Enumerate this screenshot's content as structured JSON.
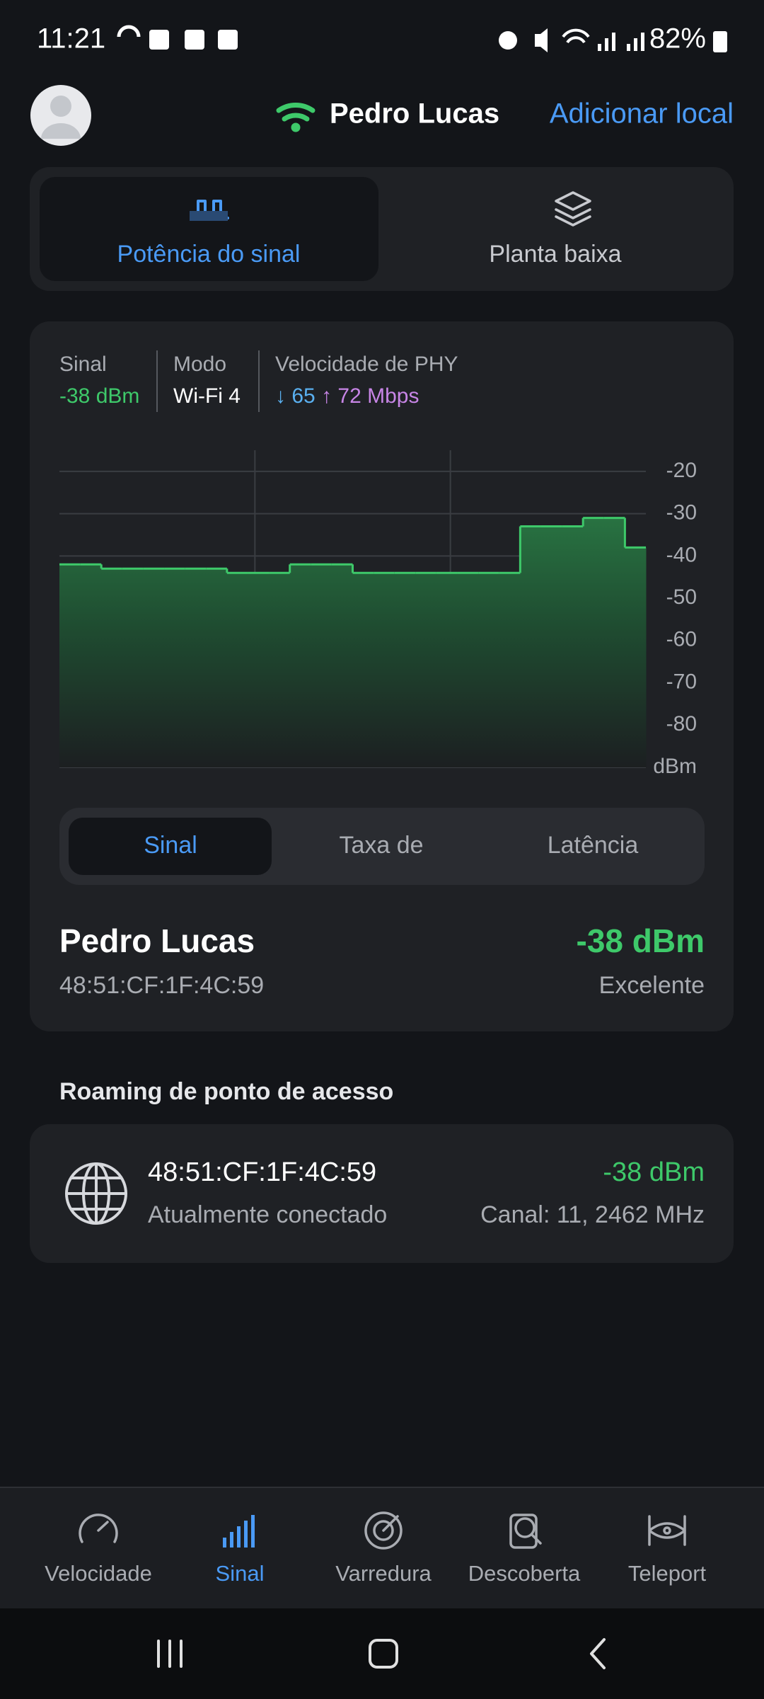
{
  "status_bar": {
    "time": "11:21",
    "battery": "82%"
  },
  "header": {
    "network": "Pedro Lucas",
    "action": "Adicionar local"
  },
  "view_tabs": [
    "Potência do sinal",
    "Planta baixa"
  ],
  "stats": {
    "signal": {
      "label": "Sinal",
      "value": "-38 dBm"
    },
    "mode": {
      "label": "Modo",
      "value": "Wi-Fi 4"
    },
    "phy": {
      "label": "Velocidade de PHY",
      "down": "↓ 65",
      "up": "↑ 72 Mbps"
    }
  },
  "chart": {
    "type": "area",
    "values": [
      -42,
      -42,
      -43,
      -43,
      -43,
      -43,
      -43,
      -43,
      -44,
      -44,
      -44,
      -42,
      -42,
      -42,
      -44,
      -44,
      -44,
      -44,
      -44,
      -44,
      -44,
      -44,
      -33,
      -33,
      -33,
      -31,
      -31,
      -38
    ],
    "ylim": [
      -90,
      -15
    ],
    "yticks": [
      -20,
      -30,
      -40,
      -50,
      -60,
      -70,
      -80,
      {
        "value": -90,
        "label": "dBm"
      }
    ],
    "color": "#3ec96a",
    "grid": true
  },
  "metric_tabs": [
    "Sinal",
    "Taxa de",
    "Latência"
  ],
  "connection": {
    "name": "Pedro Lucas",
    "mac": "48:51:CF:1F:4C:59",
    "signal": "-38 dBm",
    "quality": "Excelente"
  },
  "roaming": {
    "title": "Roaming de ponto de acesso",
    "items": [
      {
        "bssid": "48:51:CF:1F:4C:59",
        "status": "Atualmente conectado",
        "signal": "-38 dBm",
        "channel": "Canal: 11, 2462 MHz"
      }
    ]
  },
  "nav": [
    "Velocidade",
    "Sinal",
    "Varredura",
    "Descoberta",
    "Teleport"
  ]
}
